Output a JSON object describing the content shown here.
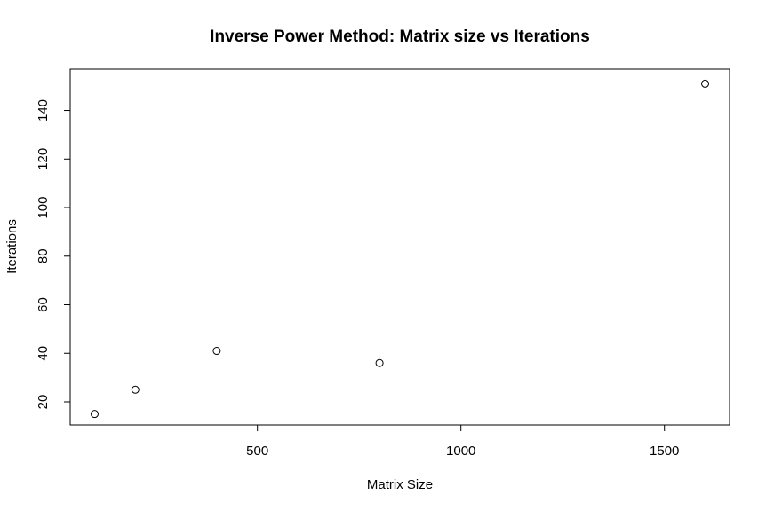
{
  "chart_data": {
    "type": "scatter",
    "title": "Inverse Power Method: Matrix size vs Iterations",
    "xlabel": "Matrix Size",
    "ylabel": "Iterations",
    "x": [
      100,
      200,
      400,
      800,
      1600
    ],
    "y": [
      15,
      25,
      41,
      36,
      151
    ],
    "xlim": [
      40,
      1660
    ],
    "ylim": [
      10.5,
      157
    ],
    "xticks": [
      500,
      1000,
      1500
    ],
    "xtick_labels": [
      "500",
      "1000",
      "1500"
    ],
    "yticks": [
      20,
      40,
      60,
      80,
      100,
      120,
      140
    ],
    "ytick_labels": [
      "20",
      "40",
      "60",
      "80",
      "100",
      "120",
      "140"
    ],
    "marker": "open-circle",
    "grid": false,
    "legend": "none",
    "colors": {
      "points": "#000000",
      "axes": "#000000",
      "background": "#ffffff"
    }
  }
}
